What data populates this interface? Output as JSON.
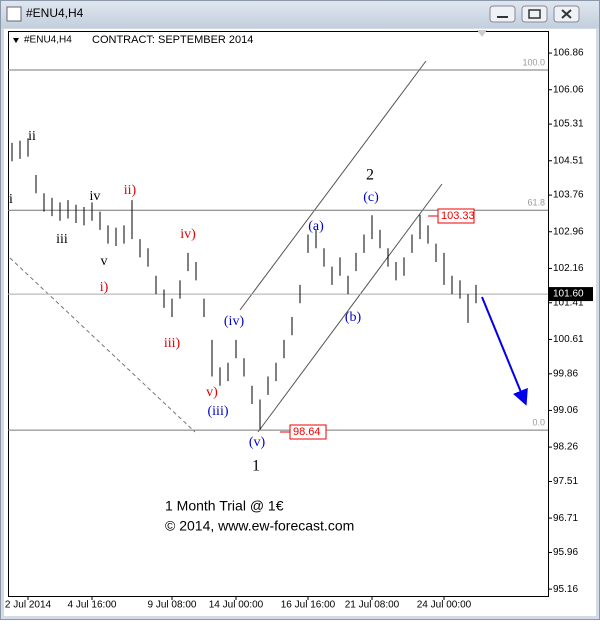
{
  "window": {
    "title": "#ENU4,H4"
  },
  "chart_data": {
    "type": "ohlc",
    "symbol": "#ENU4,H4",
    "title": "CONTRACT: SEPTEMBER 2014",
    "categories": [
      null,
      null,
      "2 Jul 2014",
      null,
      null,
      null,
      null,
      null,
      null,
      null,
      "4 Jul 16:00",
      null,
      null,
      null,
      null,
      null,
      null,
      null,
      null,
      null,
      "9 Jul 08:00",
      null,
      null,
      null,
      null,
      null,
      null,
      null,
      "14 Jul 00:00",
      null,
      null,
      null,
      null,
      null,
      null,
      null,
      null,
      "16 Jul 16:00",
      null,
      null,
      null,
      null,
      null,
      null,
      null,
      "21 Jul 08:00",
      null,
      null,
      null,
      null,
      null,
      null,
      null,
      null,
      "24 Jul 00:00",
      null,
      null,
      null,
      null
    ],
    "high": [
      104.9,
      104.95,
      105.0,
      104.2,
      103.8,
      103.7,
      103.6,
      103.65,
      103.55,
      103.5,
      103.6,
      103.4,
      103.1,
      103.05,
      103.1,
      103.65,
      102.8,
      102.6,
      102.0,
      101.7,
      101.5,
      101.9,
      102.5,
      102.3,
      101.5,
      100.6,
      100.0,
      100.1,
      100.6,
      100.2,
      99.6,
      99.3,
      99.8,
      100.1,
      100.6,
      101.1,
      101.8,
      102.9,
      103.0,
      102.6,
      102.2,
      102.4,
      102.0,
      102.5,
      102.9,
      103.32,
      103.0,
      102.6,
      102.3,
      102.4,
      102.9,
      103.33,
      103.1,
      102.7,
      102.5,
      102.0,
      101.9,
      101.6,
      101.8
    ],
    "low": [
      104.5,
      104.55,
      104.6,
      103.8,
      103.4,
      103.3,
      103.2,
      103.25,
      103.15,
      103.1,
      103.2,
      103.0,
      102.7,
      102.65,
      102.7,
      102.8,
      102.4,
      102.2,
      101.6,
      101.3,
      101.1,
      101.5,
      102.1,
      101.9,
      101.1,
      99.8,
      99.6,
      99.7,
      100.2,
      99.8,
      99.2,
      98.64,
      99.4,
      99.7,
      100.2,
      100.7,
      101.4,
      102.5,
      102.6,
      102.2,
      101.8,
      102.0,
      101.6,
      102.1,
      102.5,
      102.8,
      102.6,
      102.2,
      101.9,
      102.0,
      102.5,
      102.8,
      102.7,
      102.3,
      101.8,
      101.6,
      101.5,
      100.97,
      101.4
    ],
    "color": "#000000",
    "ylim": [
      95.01,
      107.32
    ],
    "yticks": [
      106.86,
      106.06,
      105.31,
      104.51,
      103.76,
      102.96,
      102.16,
      101.41,
      100.61,
      99.86,
      99.06,
      98.26,
      97.51,
      96.71,
      95.96,
      95.16
    ],
    "levels": [
      {
        "value": 106.49,
        "label": "100.0"
      },
      {
        "value": 103.43,
        "label": "61.8"
      },
      {
        "value": 98.63,
        "label": "0.0"
      }
    ],
    "current_price": {
      "value": 101.6,
      "label": "101.60"
    },
    "price_labels": [
      103.33,
      98.64
    ],
    "waves": [
      {
        "label": "i",
        "color": "#000000"
      },
      {
        "label": "ii",
        "color": "#000000"
      },
      {
        "label": "iii",
        "color": "#000000"
      },
      {
        "label": "iv",
        "color": "#000000"
      },
      {
        "label": "v",
        "color": "#000000"
      },
      {
        "label": "2",
        "color": "#000000"
      },
      {
        "label": "1",
        "color": "#000000"
      },
      {
        "label": "ii)",
        "color": "#e00000"
      },
      {
        "label": "i)",
        "color": "#e00000"
      },
      {
        "label": "iv)",
        "color": "#e00000"
      },
      {
        "label": "iii)",
        "color": "#e00000"
      },
      {
        "label": "v)",
        "color": "#e00000"
      },
      {
        "label": "(a)",
        "color": "#0000cc"
      },
      {
        "label": "(c)",
        "color": "#0000cc"
      },
      {
        "label": "(b)",
        "color": "#0000cc"
      },
      {
        "label": "(iv)",
        "color": "#0000cc"
      },
      {
        "label": "(iii)",
        "color": "#0000cc"
      },
      {
        "label": "(v)",
        "color": "#0000cc"
      }
    ],
    "watermark": [
      "1 Month Trial @ 1€",
      "© 2014, www.ew-forecast.com"
    ]
  }
}
